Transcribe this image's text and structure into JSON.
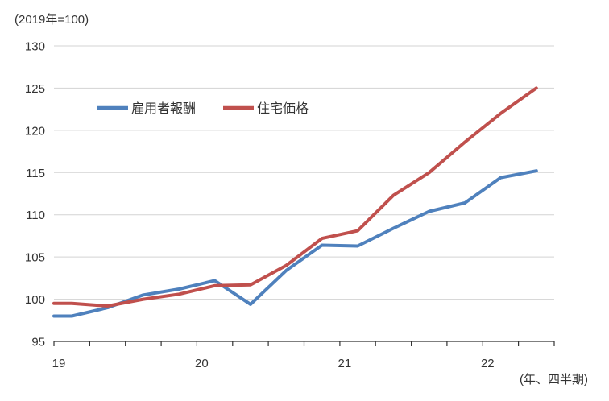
{
  "chart_data": {
    "type": "line",
    "unit_note": "(2019年=100)",
    "x_note": "(年、四半期)",
    "categories": [
      "2019Q1",
      "2019Q2",
      "2019Q3",
      "2019Q4",
      "2020Q1",
      "2020Q2",
      "2020Q3",
      "2020Q4",
      "2021Q1",
      "2021Q2",
      "2021Q3",
      "2021Q4",
      "2022Q1",
      "2022Q2"
    ],
    "x_year_labels": [
      "19",
      "20",
      "21",
      "22"
    ],
    "series": [
      {
        "name": "雇用者報酬",
        "color": "#4F81BD",
        "values": [
          98.0,
          99.0,
          100.5,
          101.2,
          102.2,
          99.4,
          103.4,
          106.4,
          106.3,
          108.4,
          110.4,
          111.4,
          114.4,
          115.2
        ]
      },
      {
        "name": "住宅価格",
        "color": "#C0504D",
        "values": [
          99.5,
          99.2,
          100.0,
          100.6,
          101.6,
          101.7,
          104.0,
          107.2,
          108.1,
          112.3,
          115.0,
          118.6,
          122.0,
          125.0
        ]
      }
    ],
    "ylim": [
      95,
      130
    ],
    "y_ticks": [
      95,
      100,
      105,
      110,
      115,
      120,
      125,
      130
    ],
    "grid": true,
    "legend_position": "top-left-inside",
    "colors": {
      "gridline": "#d3d3d3",
      "axis": "#333333",
      "text": "#333333",
      "background": "#ffffff"
    }
  }
}
